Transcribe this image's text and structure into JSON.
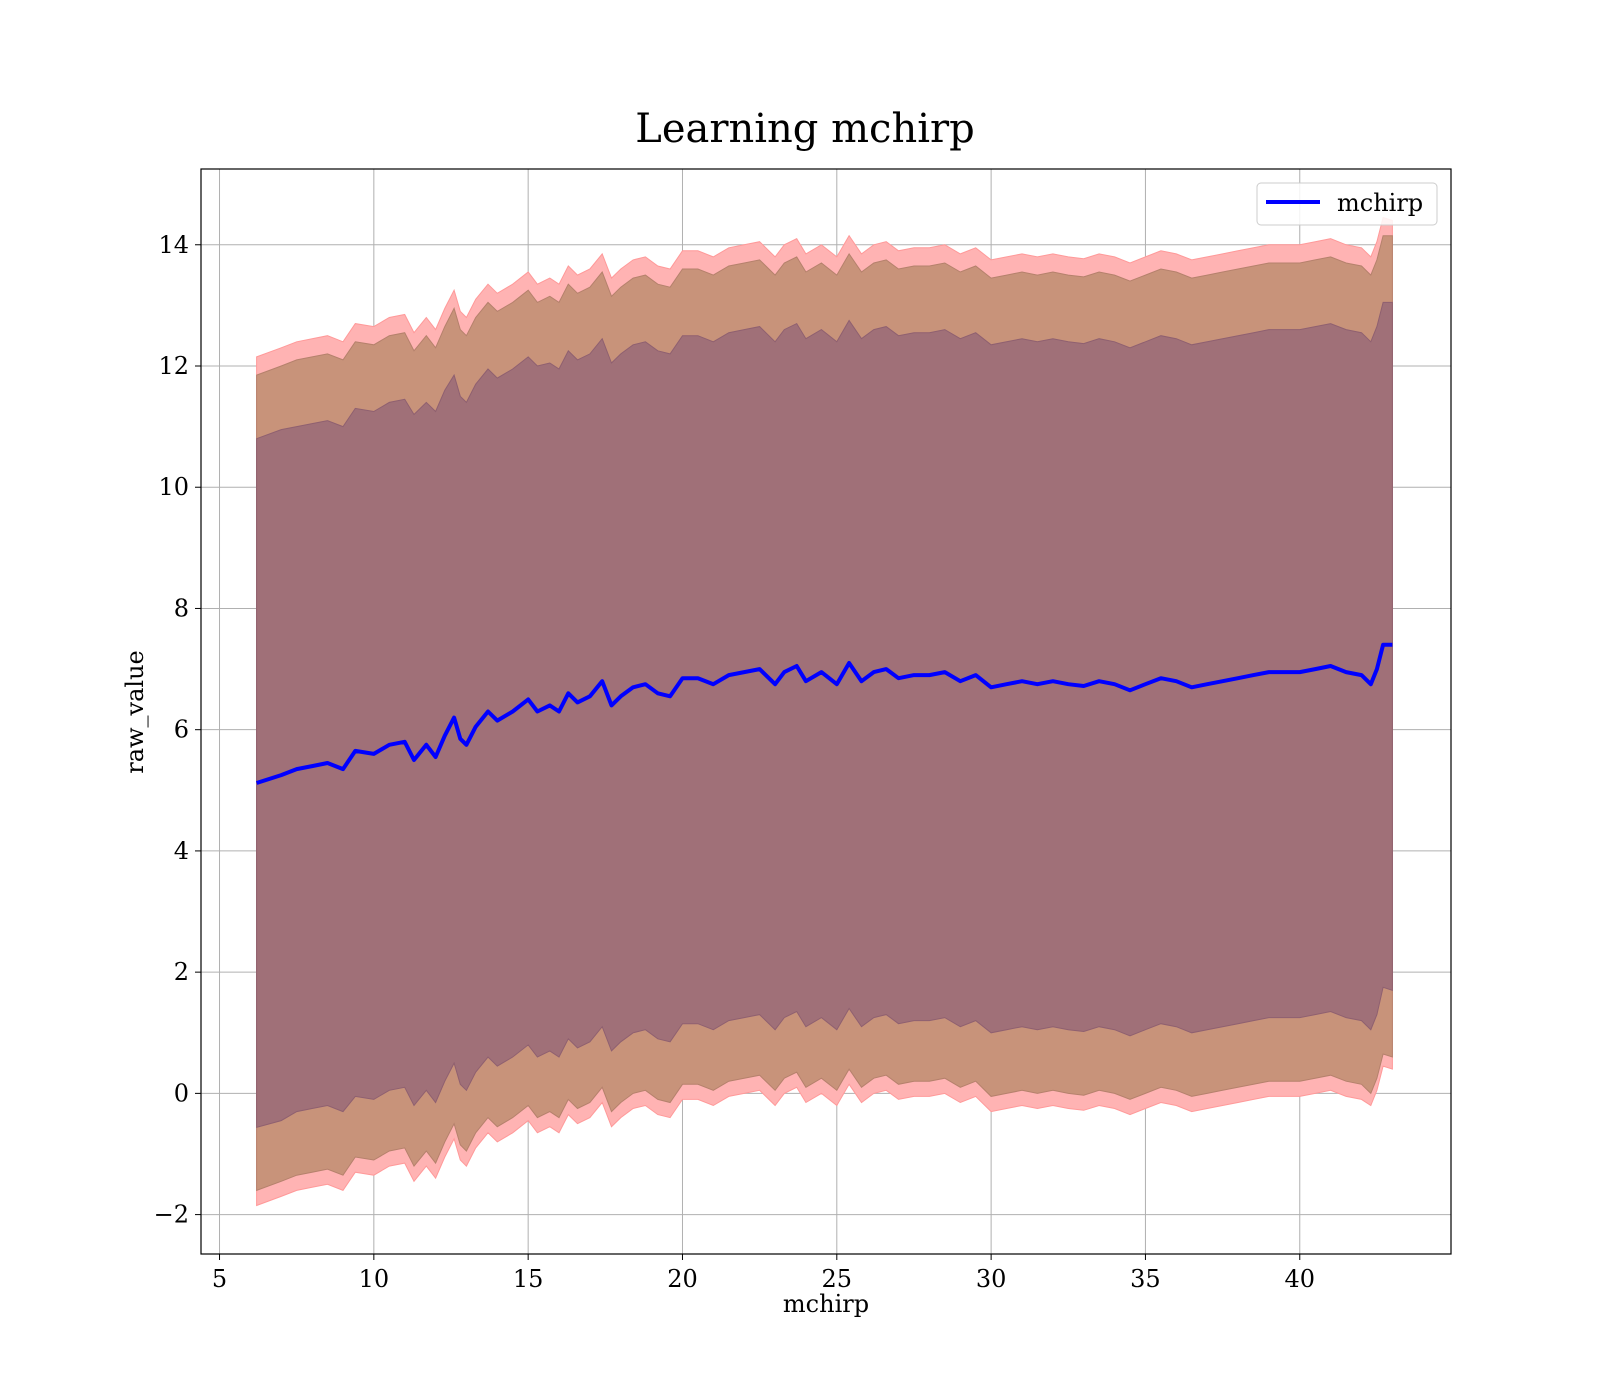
{
  "chart_data": {
    "type": "area",
    "title": "Learning mchirp",
    "xlabel": "mchirp",
    "ylabel": "raw_value",
    "xlim": [
      4.4,
      44.9
    ],
    "ylim": [
      -2.65,
      15.25
    ],
    "xticks": [
      5,
      10,
      15,
      20,
      25,
      30,
      35,
      40
    ],
    "yticks": [
      -2,
      0,
      2,
      4,
      6,
      8,
      10,
      12,
      14
    ],
    "xtick_labels": [
      "5",
      "10",
      "15",
      "20",
      "25",
      "30",
      "35",
      "40"
    ],
    "ytick_labels": [
      "−2",
      "0",
      "2",
      "4",
      "6",
      "8",
      "10",
      "12",
      "14"
    ],
    "grid": true,
    "legend": {
      "position": "top-right",
      "entries": [
        "mchirp"
      ]
    },
    "colors": {
      "line": "#0000ff",
      "band_1sigma": "#a07078",
      "band_2sigma": "#c8937a",
      "band_3sigma": "#ffb3b3",
      "grid": "#b0b0b0"
    },
    "x": [
      6.2,
      7,
      7.5,
      8,
      8.5,
      9,
      9.4,
      10,
      10.5,
      11,
      11.3,
      11.7,
      12,
      12.3,
      12.6,
      12.8,
      13,
      13.3,
      13.7,
      14,
      14.5,
      15,
      15.3,
      15.7,
      16,
      16.3,
      16.6,
      17,
      17.4,
      17.7,
      18,
      18.4,
      18.8,
      19.2,
      19.6,
      20,
      20.5,
      21,
      21.5,
      22,
      22.5,
      23,
      23.3,
      23.7,
      24,
      24.5,
      25,
      25.4,
      25.8,
      26.2,
      26.6,
      27,
      27.5,
      28,
      28.5,
      29,
      29.5,
      30,
      30.5,
      31,
      31.5,
      32,
      32.5,
      33,
      33.5,
      34,
      34.5,
      35,
      35.5,
      36,
      36.5,
      37,
      37.5,
      38,
      38.5,
      39,
      39.5,
      40,
      40.5,
      41,
      41.5,
      42,
      42.3,
      42.5,
      42.7,
      43
    ],
    "series": [
      {
        "name": "mchirp",
        "values": [
          5.12,
          5.25,
          5.35,
          5.4,
          5.45,
          5.35,
          5.65,
          5.6,
          5.75,
          5.8,
          5.5,
          5.75,
          5.55,
          5.9,
          6.2,
          5.85,
          5.75,
          6.05,
          6.3,
          6.15,
          6.3,
          6.5,
          6.3,
          6.4,
          6.3,
          6.6,
          6.45,
          6.55,
          6.8,
          6.4,
          6.55,
          6.7,
          6.75,
          6.6,
          6.55,
          6.85,
          6.85,
          6.75,
          6.9,
          6.95,
          7.0,
          6.75,
          6.95,
          7.05,
          6.8,
          6.95,
          6.75,
          7.1,
          6.8,
          6.95,
          7.0,
          6.85,
          6.9,
          6.9,
          6.95,
          6.8,
          6.9,
          6.7,
          6.75,
          6.8,
          6.75,
          6.8,
          6.75,
          6.72,
          6.8,
          6.75,
          6.65,
          6.75,
          6.85,
          6.8,
          6.7,
          6.75,
          6.8,
          6.85,
          6.9,
          6.95,
          6.95,
          6.95,
          7.0,
          7.05,
          6.95,
          6.9,
          6.75,
          7.0,
          7.4,
          7.4
        ],
        "band_1sigma_upper": [
          10.8,
          10.95,
          11.0,
          11.05,
          11.1,
          11.0,
          11.3,
          11.25,
          11.4,
          11.45,
          11.2,
          11.4,
          11.25,
          11.6,
          11.85,
          11.5,
          11.4,
          11.7,
          11.95,
          11.8,
          11.95,
          12.15,
          12.0,
          12.05,
          11.95,
          12.25,
          12.1,
          12.2,
          12.45,
          12.05,
          12.2,
          12.35,
          12.4,
          12.25,
          12.2,
          12.5,
          12.5,
          12.4,
          12.55,
          12.6,
          12.65,
          12.4,
          12.6,
          12.7,
          12.45,
          12.6,
          12.4,
          12.75,
          12.45,
          12.6,
          12.65,
          12.5,
          12.55,
          12.55,
          12.6,
          12.45,
          12.55,
          12.35,
          12.4,
          12.45,
          12.4,
          12.45,
          12.4,
          12.37,
          12.45,
          12.4,
          12.3,
          12.4,
          12.5,
          12.45,
          12.35,
          12.4,
          12.45,
          12.5,
          12.55,
          12.6,
          12.6,
          12.6,
          12.65,
          12.7,
          12.6,
          12.55,
          12.4,
          12.65,
          13.05,
          13.05
        ],
        "band_1sigma_lower": [
          -0.56,
          -0.45,
          -0.3,
          -0.25,
          -0.2,
          -0.3,
          -0.05,
          -0.1,
          0.05,
          0.1,
          -0.2,
          0.05,
          -0.15,
          0.2,
          0.5,
          0.15,
          0.05,
          0.35,
          0.6,
          0.45,
          0.6,
          0.8,
          0.6,
          0.7,
          0.6,
          0.9,
          0.75,
          0.85,
          1.1,
          0.7,
          0.85,
          1.0,
          1.05,
          0.9,
          0.85,
          1.15,
          1.15,
          1.05,
          1.2,
          1.25,
          1.3,
          1.05,
          1.25,
          1.35,
          1.1,
          1.25,
          1.05,
          1.4,
          1.1,
          1.25,
          1.3,
          1.15,
          1.2,
          1.2,
          1.25,
          1.1,
          1.2,
          1.0,
          1.05,
          1.1,
          1.05,
          1.1,
          1.05,
          1.02,
          1.1,
          1.05,
          0.95,
          1.05,
          1.15,
          1.1,
          1.0,
          1.05,
          1.1,
          1.15,
          1.2,
          1.25,
          1.25,
          1.25,
          1.3,
          1.35,
          1.25,
          1.2,
          1.05,
          1.3,
          1.75,
          1.7
        ],
        "band_2sigma_upper": [
          11.85,
          12.0,
          12.1,
          12.15,
          12.2,
          12.1,
          12.4,
          12.35,
          12.5,
          12.55,
          12.25,
          12.5,
          12.3,
          12.65,
          12.95,
          12.6,
          12.5,
          12.8,
          13.05,
          12.9,
          13.05,
          13.25,
          13.05,
          13.15,
          13.05,
          13.35,
          13.2,
          13.3,
          13.55,
          13.15,
          13.3,
          13.45,
          13.5,
          13.35,
          13.3,
          13.6,
          13.6,
          13.5,
          13.65,
          13.7,
          13.75,
          13.5,
          13.7,
          13.8,
          13.55,
          13.7,
          13.5,
          13.85,
          13.55,
          13.7,
          13.75,
          13.6,
          13.65,
          13.65,
          13.7,
          13.55,
          13.65,
          13.45,
          13.5,
          13.55,
          13.5,
          13.55,
          13.5,
          13.47,
          13.55,
          13.5,
          13.4,
          13.5,
          13.6,
          13.55,
          13.45,
          13.5,
          13.55,
          13.6,
          13.65,
          13.7,
          13.7,
          13.7,
          13.75,
          13.8,
          13.7,
          13.65,
          13.5,
          13.75,
          14.15,
          14.15
        ],
        "band_2sigma_lower": [
          -1.6,
          -1.45,
          -1.35,
          -1.3,
          -1.25,
          -1.35,
          -1.05,
          -1.1,
          -0.95,
          -0.9,
          -1.2,
          -0.95,
          -1.15,
          -0.8,
          -0.5,
          -0.85,
          -0.95,
          -0.65,
          -0.4,
          -0.55,
          -0.4,
          -0.2,
          -0.4,
          -0.3,
          -0.4,
          -0.1,
          -0.25,
          -0.15,
          0.1,
          -0.3,
          -0.15,
          0.0,
          0.05,
          -0.1,
          -0.15,
          0.15,
          0.15,
          0.05,
          0.2,
          0.25,
          0.3,
          0.05,
          0.25,
          0.35,
          0.1,
          0.25,
          0.05,
          0.4,
          0.1,
          0.25,
          0.3,
          0.15,
          0.2,
          0.2,
          0.25,
          0.1,
          0.2,
          -0.05,
          0.0,
          0.05,
          0.0,
          0.05,
          0.0,
          -0.03,
          0.05,
          0.0,
          -0.1,
          0.0,
          0.1,
          0.05,
          -0.05,
          0.0,
          0.05,
          0.1,
          0.15,
          0.2,
          0.2,
          0.2,
          0.25,
          0.3,
          0.2,
          0.15,
          0.0,
          0.25,
          0.65,
          0.6
        ],
        "band_3sigma_upper": [
          12.15,
          12.3,
          12.4,
          12.45,
          12.5,
          12.4,
          12.7,
          12.65,
          12.8,
          12.85,
          12.55,
          12.8,
          12.6,
          12.95,
          13.25,
          12.9,
          12.8,
          13.1,
          13.35,
          13.2,
          13.35,
          13.55,
          13.35,
          13.45,
          13.35,
          13.65,
          13.5,
          13.6,
          13.85,
          13.45,
          13.6,
          13.75,
          13.8,
          13.65,
          13.6,
          13.9,
          13.9,
          13.8,
          13.95,
          14.0,
          14.05,
          13.8,
          14.0,
          14.1,
          13.85,
          14.0,
          13.8,
          14.15,
          13.85,
          14.0,
          14.05,
          13.9,
          13.95,
          13.95,
          14.0,
          13.85,
          13.95,
          13.75,
          13.8,
          13.85,
          13.8,
          13.85,
          13.8,
          13.77,
          13.85,
          13.8,
          13.7,
          13.8,
          13.9,
          13.85,
          13.75,
          13.8,
          13.85,
          13.9,
          13.95,
          14.0,
          14.0,
          14.0,
          14.05,
          14.1,
          14.0,
          13.95,
          13.8,
          14.05,
          14.45,
          14.4
        ],
        "band_3sigma_lower": [
          -1.85,
          -1.7,
          -1.6,
          -1.55,
          -1.5,
          -1.6,
          -1.3,
          -1.35,
          -1.2,
          -1.15,
          -1.45,
          -1.2,
          -1.4,
          -1.05,
          -0.75,
          -1.1,
          -1.2,
          -0.9,
          -0.65,
          -0.8,
          -0.65,
          -0.45,
          -0.65,
          -0.55,
          -0.65,
          -0.35,
          -0.5,
          -0.4,
          -0.15,
          -0.55,
          -0.4,
          -0.25,
          -0.2,
          -0.35,
          -0.4,
          -0.1,
          -0.1,
          -0.2,
          -0.05,
          0.0,
          0.05,
          -0.2,
          0.0,
          0.1,
          -0.15,
          0.0,
          -0.2,
          0.15,
          -0.15,
          0.0,
          0.05,
          -0.1,
          -0.05,
          -0.05,
          0.0,
          -0.15,
          -0.05,
          -0.3,
          -0.25,
          -0.2,
          -0.25,
          -0.2,
          -0.25,
          -0.28,
          -0.2,
          -0.25,
          -0.35,
          -0.25,
          -0.15,
          -0.2,
          -0.3,
          -0.25,
          -0.2,
          -0.15,
          -0.1,
          -0.05,
          -0.05,
          -0.05,
          0.0,
          0.05,
          -0.05,
          -0.1,
          -0.2,
          0.05,
          0.45,
          0.4
        ]
      }
    ]
  }
}
